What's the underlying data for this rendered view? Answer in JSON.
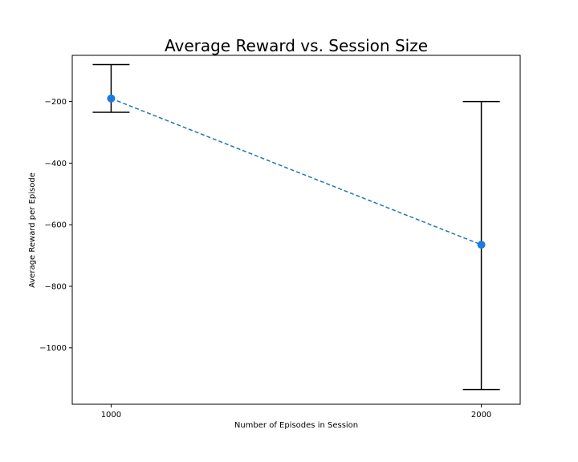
{
  "chart_data": {
    "type": "line",
    "title": "Average Reward vs. Session Size",
    "xlabel": "Number of Episodes in Session",
    "ylabel": "Average Reward per Episode",
    "x": [
      1000,
      2000
    ],
    "xticks": [
      1000,
      2000
    ],
    "xtick_labels": [
      "1000",
      "2000"
    ],
    "yticks": [
      -200,
      -400,
      -600,
      -800,
      -1000
    ],
    "ytick_labels": [
      "−200",
      "−400",
      "−600",
      "−800",
      "−1000"
    ],
    "xlim": [
      895,
      2105
    ],
    "ylim": [
      -1183,
      -50
    ],
    "grid": false,
    "series": [
      {
        "values": [
          -190,
          -665
        ],
        "error_low": [
          -235,
          -1135
        ],
        "error_high": [
          -80,
          -200
        ],
        "line_style": "dashed",
        "marker": "circle",
        "color": "#1f77b4",
        "marker_color": "#1a7be0"
      }
    ],
    "errorbar_color": "#000000"
  }
}
